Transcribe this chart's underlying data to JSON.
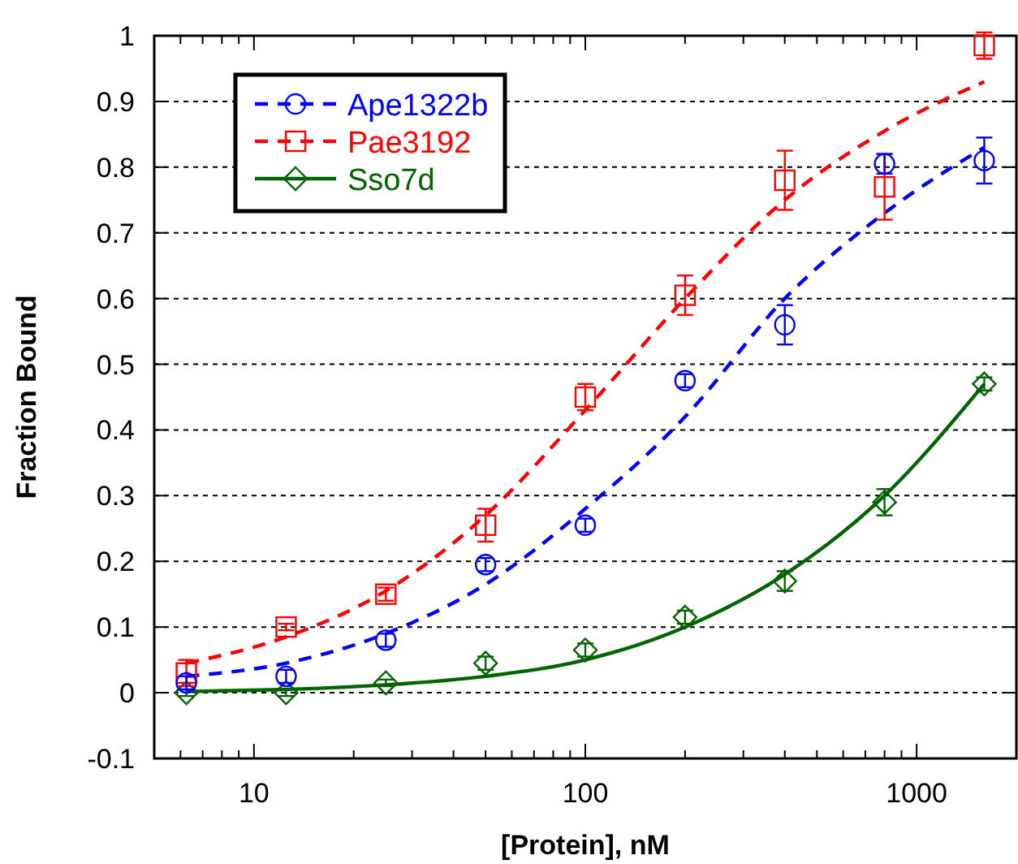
{
  "chart_data": {
    "type": "scatter",
    "xlabel": "[Protein], nM",
    "ylabel": "Fraction Bound",
    "log": "x",
    "xlim": [
      5,
      2000
    ],
    "ylim": [
      -0.1,
      1
    ],
    "xticks": [
      {
        "value": 6,
        "label": null
      },
      {
        "value": 7,
        "label": null
      },
      {
        "value": 8,
        "label": null
      },
      {
        "value": 9,
        "label": null
      },
      10,
      {
        "value": 20,
        "label": null
      },
      {
        "value": 30,
        "label": null
      },
      {
        "value": 40,
        "label": null
      },
      {
        "value": 50,
        "label": null
      },
      {
        "value": 60,
        "label": null
      },
      {
        "value": 70,
        "label": null
      },
      {
        "value": 80,
        "label": null
      },
      {
        "value": 90,
        "label": null
      },
      100,
      {
        "value": 200,
        "label": null
      },
      {
        "value": 300,
        "label": null
      },
      {
        "value": 400,
        "label": null
      },
      {
        "value": 500,
        "label": null
      },
      {
        "value": 600,
        "label": null
      },
      {
        "value": 700,
        "label": null
      },
      {
        "value": 800,
        "label": null
      },
      {
        "value": 900,
        "label": null
      },
      1000
    ],
    "yticks": [
      -0.1,
      0,
      0.1,
      0.2,
      0.3,
      0.4,
      0.5,
      0.6,
      0.7,
      0.8,
      0.9,
      1
    ],
    "grid": "y",
    "legend": "top left",
    "series": [
      {
        "name": "Ape1322b",
        "color": "#0000ff",
        "marker": "circle",
        "x": [
          6.25,
          12.5,
          25,
          50,
          100,
          200,
          400,
          800,
          1600
        ],
        "values": [
          0.015,
          0.025,
          0.08,
          0.195,
          0.255,
          0.475,
          0.56,
          0.805,
          0.81
        ],
        "errors": [
          0.01,
          0.01,
          0.01,
          0.01,
          0.01,
          0.01,
          0.03,
          0.015,
          0.035
        ]
      },
      {
        "type": "line",
        "color": "#0000ff",
        "line_style": "dashed",
        "marker": "none",
        "x": [
          6.25,
          12.5,
          25,
          50,
          100,
          200,
          400,
          800,
          1600
        ],
        "values": [
          0.025,
          0.045,
          0.09,
          0.165,
          0.28,
          0.42,
          0.6,
          0.73,
          0.83
        ]
      },
      {
        "name": "Pae3192",
        "color": "#ff0000",
        "marker": "square",
        "x": [
          6.25,
          12.5,
          25,
          50,
          100,
          200,
          400,
          800,
          1600
        ],
        "values": [
          0.03,
          0.1,
          0.15,
          0.255,
          0.45,
          0.605,
          0.78,
          0.77,
          0.985
        ],
        "errors": [
          0.02,
          0.005,
          0.01,
          0.025,
          0.02,
          0.03,
          0.045,
          0.05,
          0.02
        ]
      },
      {
        "type": "line",
        "color": "#ff0000",
        "line_style": "dashed",
        "marker": "none",
        "x": [
          6.25,
          12.5,
          25,
          50,
          100,
          200,
          400,
          800,
          1600
        ],
        "values": [
          0.045,
          0.085,
          0.155,
          0.27,
          0.43,
          0.6,
          0.75,
          0.855,
          0.93
        ]
      },
      {
        "name": "Sso7d",
        "color": "#006400",
        "marker": "diamond",
        "x": [
          6.25,
          12.5,
          25,
          50,
          100,
          200,
          400,
          800,
          1600
        ],
        "values": [
          0,
          0,
          0.015,
          0.045,
          0.065,
          0.115,
          0.17,
          0.29,
          0.47
        ],
        "errors": [
          0.005,
          0.005,
          0.005,
          0.01,
          0.01,
          0.01,
          0.015,
          0.02,
          0.01
        ]
      },
      {
        "type": "line",
        "color": "#006400",
        "line_style": "solid",
        "marker": "none",
        "x": [
          6.25,
          12.5,
          25,
          50,
          100,
          200,
          400,
          800,
          1600
        ],
        "values": [
          0.002,
          0.005,
          0.012,
          0.025,
          0.05,
          0.1,
          0.18,
          0.3,
          0.47
        ]
      }
    ]
  }
}
